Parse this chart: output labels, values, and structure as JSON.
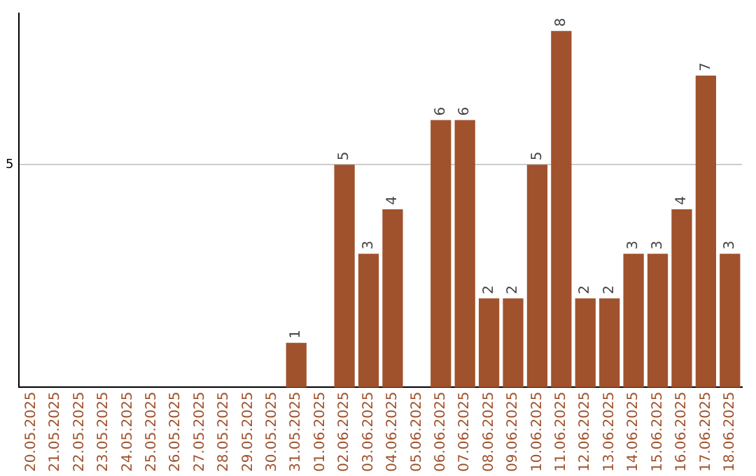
{
  "chart_data": {
    "type": "bar",
    "categories": [
      "20.05.2025",
      "21.05.2025",
      "22.05.2025",
      "23.05.2025",
      "24.05.2025",
      "25.05.2025",
      "26.05.2025",
      "27.05.2025",
      "28.05.2025",
      "29.05.2025",
      "30.05.2025",
      "31.05.2025",
      "01.06.2025",
      "02.06.2025",
      "03.06.2025",
      "04.06.2025",
      "05.06.2025",
      "06.06.2025",
      "07.06.2025",
      "08.06.2025",
      "09.06.2025",
      "10.06.2025",
      "11.06.2025",
      "12.06.2025",
      "13.06.2025",
      "14.06.2025",
      "15.06.2025",
      "16.06.2025",
      "17.06.2025",
      "18.06.2025"
    ],
    "values": [
      0,
      0,
      0,
      0,
      0,
      0,
      0,
      0,
      0,
      0,
      0,
      1,
      0,
      5,
      3,
      4,
      0,
      6,
      6,
      2,
      2,
      5,
      8,
      2,
      2,
      3,
      3,
      4,
      7,
      3
    ],
    "value_labels": [
      null,
      null,
      null,
      null,
      null,
      null,
      null,
      null,
      null,
      null,
      null,
      "1",
      null,
      "5",
      "3",
      "4",
      null,
      "6",
      "6",
      "2",
      "2",
      "5",
      "8",
      "2",
      "2",
      "3",
      "3",
      "4",
      "7",
      "3"
    ],
    "color": "#a0522d",
    "ylim": [
      0,
      8.4
    ],
    "yticks": [
      5
    ],
    "grid": "y"
  }
}
